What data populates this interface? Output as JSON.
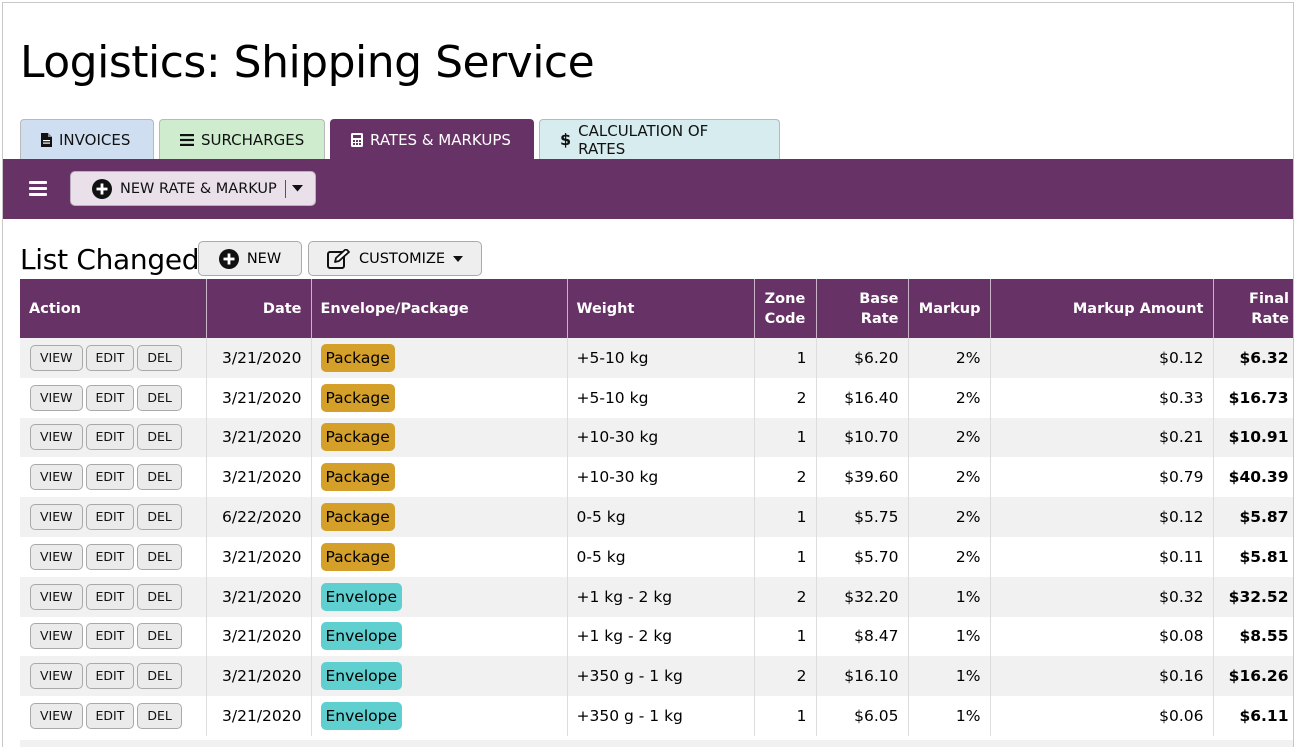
{
  "page": {
    "title": "Logistics: Shipping Service"
  },
  "tabs": [
    {
      "label": "INVOICES",
      "icon": "file-icon"
    },
    {
      "label": "SURCHARGES",
      "icon": "list-icon"
    },
    {
      "label": "RATES & MARKUPS",
      "icon": "calculator-icon"
    },
    {
      "label": "CALCULATION OF RATES",
      "icon": "dollar-icon"
    }
  ],
  "toolbar": {
    "new_rate_label": "NEW RATE & MARKUP"
  },
  "list": {
    "title": "List Changed",
    "new_label": "NEW",
    "customize_label": "CUSTOMIZE"
  },
  "table": {
    "headers": {
      "action": "Action",
      "date": "Date",
      "envelope": "Envelope/Package",
      "weight": "Weight",
      "zone_line1": "Zone",
      "zone_line2": "Code",
      "base_line1": "Base",
      "base_line2": "Rate",
      "markup": "Markup",
      "markup_amount": "Markup Amount",
      "final_line1": "Final",
      "final_line2": "Rate"
    },
    "action_labels": {
      "view": "VIEW",
      "edit": "EDIT",
      "del": "DEL"
    },
    "rows": [
      {
        "date": "3/21/2020",
        "type": "Package",
        "weight": "+5-10 kg",
        "zone": "1",
        "base": "$6.20",
        "markup": "2%",
        "amount": "$0.12",
        "final": "$6.32"
      },
      {
        "date": "3/21/2020",
        "type": "Package",
        "weight": "+5-10 kg",
        "zone": "2",
        "base": "$16.40",
        "markup": "2%",
        "amount": "$0.33",
        "final": "$16.73"
      },
      {
        "date": "3/21/2020",
        "type": "Package",
        "weight": "+10-30 kg",
        "zone": "1",
        "base": "$10.70",
        "markup": "2%",
        "amount": "$0.21",
        "final": "$10.91"
      },
      {
        "date": "3/21/2020",
        "type": "Package",
        "weight": "+10-30 kg",
        "zone": "2",
        "base": "$39.60",
        "markup": "2%",
        "amount": "$0.79",
        "final": "$40.39"
      },
      {
        "date": "6/22/2020",
        "type": "Package",
        "weight": "0-5 kg",
        "zone": "1",
        "base": "$5.75",
        "markup": "2%",
        "amount": "$0.12",
        "final": "$5.87"
      },
      {
        "date": "3/21/2020",
        "type": "Package",
        "weight": "0-5 kg",
        "zone": "1",
        "base": "$5.70",
        "markup": "2%",
        "amount": "$0.11",
        "final": "$5.81"
      },
      {
        "date": "3/21/2020",
        "type": "Envelope",
        "weight": "+1 kg - 2 kg",
        "zone": "2",
        "base": "$32.20",
        "markup": "1%",
        "amount": "$0.32",
        "final": "$32.52"
      },
      {
        "date": "3/21/2020",
        "type": "Envelope",
        "weight": "+1 kg - 2 kg",
        "zone": "1",
        "base": "$8.47",
        "markup": "1%",
        "amount": "$0.08",
        "final": "$8.55"
      },
      {
        "date": "3/21/2020",
        "type": "Envelope",
        "weight": "+350 g - 1 kg",
        "zone": "2",
        "base": "$16.10",
        "markup": "1%",
        "amount": "$0.16",
        "final": "$16.26"
      },
      {
        "date": "3/21/2020",
        "type": "Envelope",
        "weight": "+350 g - 1 kg",
        "zone": "1",
        "base": "$6.05",
        "markup": "1%",
        "amount": "$0.06",
        "final": "$6.11"
      }
    ]
  },
  "colors": {
    "brand": "#673366",
    "package_badge": "#d4a02a",
    "envelope_badge": "#5fcfcf",
    "tab_invoices": "#cfdff1",
    "tab_surcharges": "#cfeccf",
    "tab_calc": "#d6ecee"
  }
}
